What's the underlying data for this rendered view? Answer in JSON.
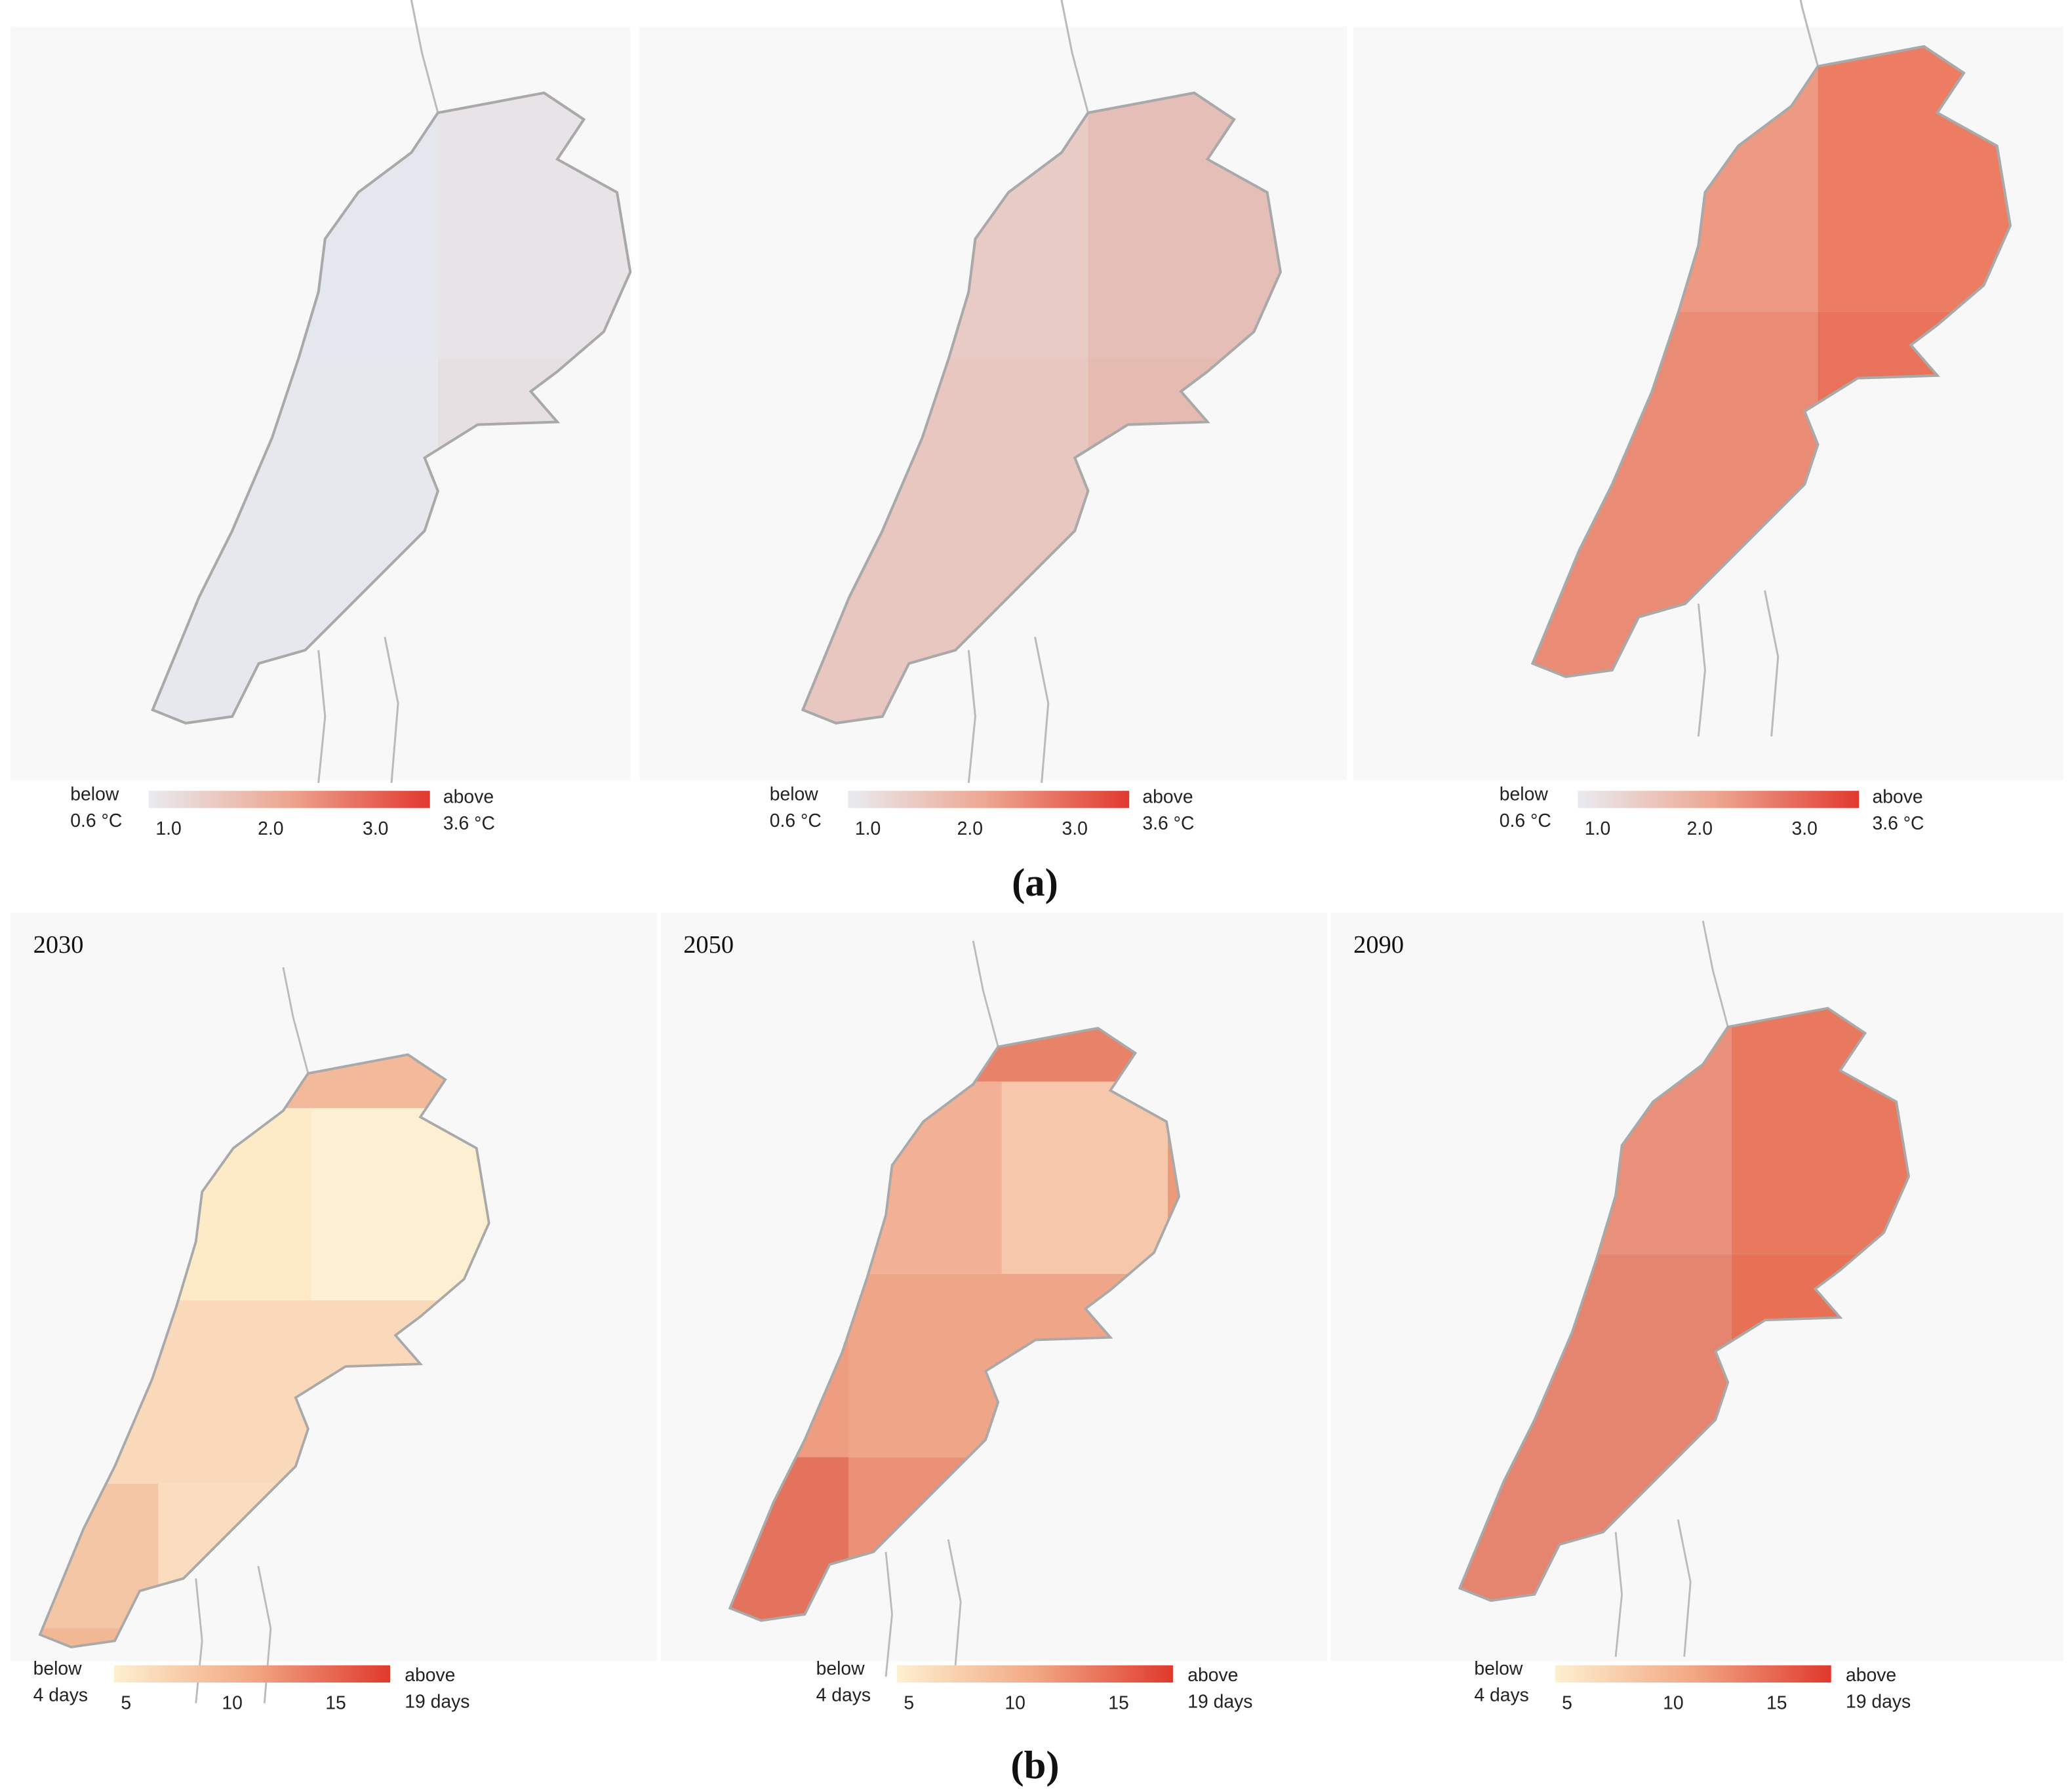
{
  "panels": {
    "a": {
      "label": "(a)",
      "maps": [
        {
          "legend": {
            "below": "below",
            "low": "0.6 °C",
            "ticks": [
              "1.0",
              "2.0",
              "3.0"
            ],
            "above": "above",
            "high": "3.6 °C"
          }
        },
        {
          "legend": {
            "below": "below",
            "low": "0.6 °C",
            "ticks": [
              "1.0",
              "2.0",
              "3.0"
            ],
            "above": "above",
            "high": "3.6 °C"
          }
        },
        {
          "legend": {
            "below": "below",
            "low": "0.6 °C",
            "ticks": [
              "1.0",
              "2.0",
              "3.0"
            ],
            "above": "above",
            "high": "3.6 °C"
          }
        }
      ]
    },
    "b": {
      "label": "(b)",
      "maps": [
        {
          "year": "2030",
          "legend": {
            "below": "below",
            "low": "4 days",
            "ticks": [
              "5",
              "10",
              "15"
            ],
            "above": "above",
            "high": "19 days"
          }
        },
        {
          "year": "2050",
          "legend": {
            "below": "below",
            "low": "4 days",
            "ticks": [
              "5",
              "10",
              "15"
            ],
            "above": "above",
            "high": "19 days"
          }
        },
        {
          "year": "2090",
          "legend": {
            "below": "below",
            "low": "4 days",
            "ticks": [
              "5",
              "10",
              "15"
            ],
            "above": "above",
            "high": "19 days"
          }
        }
      ]
    }
  }
}
